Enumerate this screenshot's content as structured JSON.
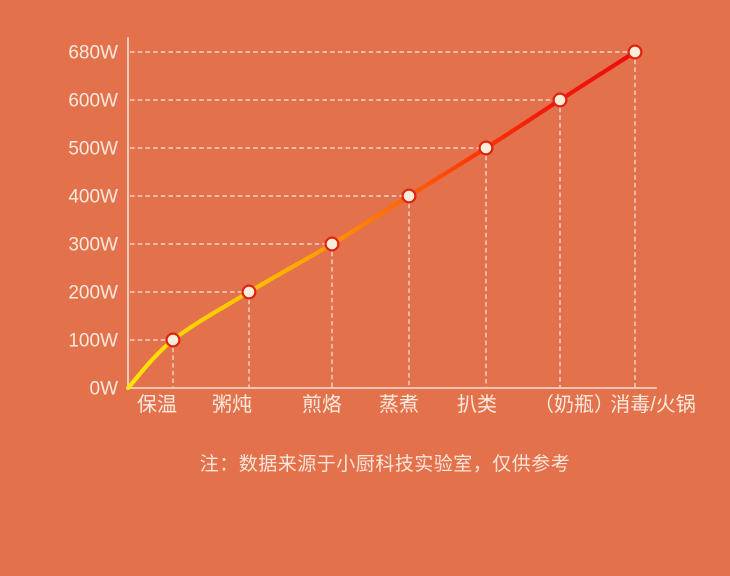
{
  "note": "注：数据来源于小厨科技实验室，仅供参考",
  "chart_data": {
    "type": "line",
    "title": "",
    "xlabel": "",
    "ylabel": "",
    "categories": [
      "保温",
      "粥炖",
      "煎烙",
      "蒸煮",
      "扒类",
      "（奶瓶）",
      "消毒/火锅"
    ],
    "values": [
      100,
      200,
      300,
      400,
      500,
      600,
      680
    ],
    "unit": "W",
    "y_ticks": [
      "0W",
      "100W",
      "200W",
      "300W",
      "400W",
      "500W",
      "600W",
      "680W"
    ],
    "y_tick_values": [
      0,
      100,
      200,
      300,
      400,
      500,
      600,
      680
    ],
    "ylim": [
      0,
      680
    ],
    "line_starts_at_origin": true,
    "grid": "dashed guide connectors from each point to both axes",
    "legend": "none",
    "colors": {
      "background": "#E3714B",
      "axis": "#F7E8DD",
      "dashed": "#F7E8DD",
      "text": "#F9EADF",
      "line_gradient": [
        "#FFE606",
        "#FFD700",
        "#FFC300",
        "#FF9C00",
        "#FF6A00",
        "#FF3B08",
        "#F41A0A",
        "#EA0C0C"
      ],
      "point_fill": "#F7EDDB",
      "point_stroke": "#E02311"
    }
  }
}
